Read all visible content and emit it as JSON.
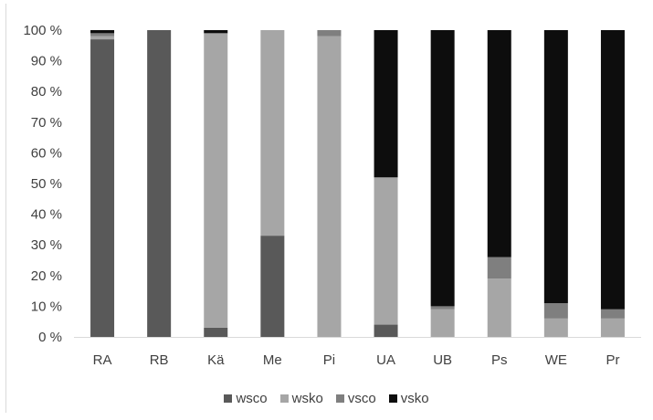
{
  "chart_data": {
    "type": "bar",
    "stacked": true,
    "percent": true,
    "categories": [
      "RA",
      "RB",
      "Kä",
      "Me",
      "Pi",
      "UA",
      "UB",
      "Ps",
      "WE",
      "Pr"
    ],
    "series": [
      {
        "name": "wsco",
        "color": "#595959",
        "values": [
          97,
          100,
          3,
          33,
          0,
          4,
          0,
          0,
          0,
          0
        ]
      },
      {
        "name": "wsko",
        "color": "#a6a6a6",
        "values": [
          1,
          0,
          96,
          67,
          98,
          48,
          9,
          19,
          6,
          6
        ]
      },
      {
        "name": "vsco",
        "color": "#7f7f7f",
        "values": [
          1,
          0,
          0,
          0,
          2,
          0,
          1,
          7,
          5,
          3
        ]
      },
      {
        "name": "vsko",
        "color": "#0d0d0d",
        "values": [
          1,
          0,
          1,
          0,
          0,
          48,
          90,
          74,
          89,
          91
        ]
      }
    ],
    "yticks": [
      "0 %",
      "10 %",
      "20 %",
      "30 %",
      "40 %",
      "50 %",
      "60 %",
      "70 %",
      "80 %",
      "90 %",
      "100 %"
    ],
    "ylim": [
      0,
      100
    ],
    "grid": false,
    "legend": "bottom"
  }
}
